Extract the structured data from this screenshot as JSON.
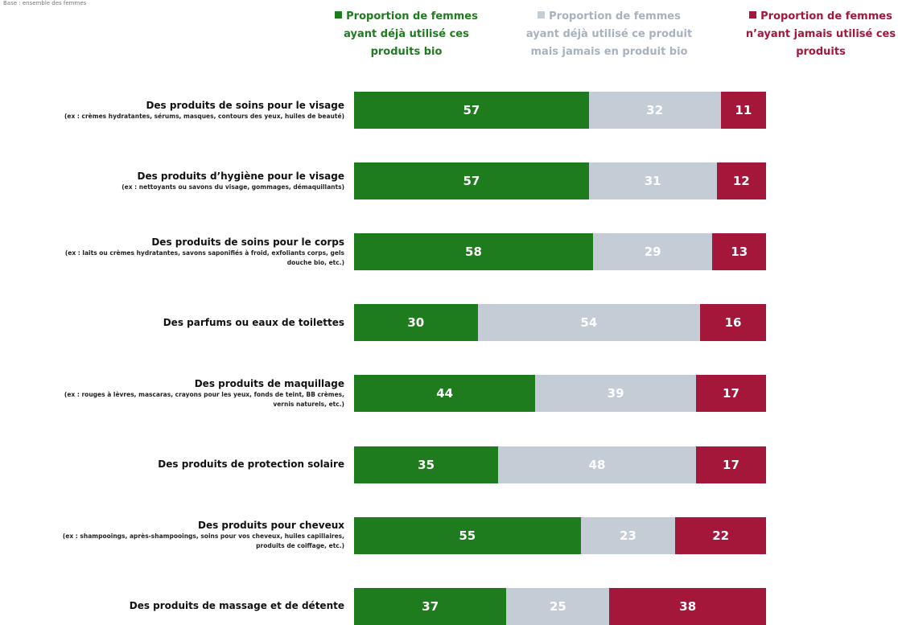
{
  "chart_data": {
    "type": "stacked-barh",
    "note": "Base : ensemble des femmes",
    "categories": [
      "Des produits de soins pour le visage",
      "Des produits d’hygiène pour le visage",
      "Des produits de soins pour le corps",
      "Des parfums ou eaux de toilettes",
      "Des produits de maquillage",
      "Des produits de protection solaire",
      "Des produits pour cheveux",
      "Des produits de massage et de détente"
    ],
    "category_notes": [
      "(ex : crèmes hydratantes, sérums, masques, contours des yeux, huiles de beauté)",
      "(ex : nettoyants ou savons du visage, gommages, démaquillants)",
      "(ex : laits ou crèmes hydratantes, savons saponifiés à froid, exfoliants corps, gels douche bio, etc.)",
      null,
      "(ex : rouges à lèvres, mascaras, crayons pour les yeux, fonds de teint, BB crèmes, vernis naturels, etc.)",
      null,
      "(ex : shampooings, après-shampooings, soins pour vos cheveux, huiles capillaires, produits de coiffage, etc.)",
      null
    ],
    "series": [
      {
        "name": "Proportion de femmes ayant déjà utilisé ces produits bio",
        "color": "#1e7b1e",
        "values": [
          57,
          57,
          58,
          30,
          44,
          35,
          55,
          37
        ]
      },
      {
        "name": "Proportion de femmes ayant déjà utilisé ce produit mais jamais en produit bio",
        "color": "#c4ccd6",
        "values": [
          32,
          31,
          29,
          54,
          39,
          48,
          23,
          25
        ]
      },
      {
        "name": "Proportion de femmes n’ayant jamais utilisé ces produits",
        "color": "#a5173a",
        "values": [
          11,
          12,
          13,
          16,
          17,
          17,
          22,
          38
        ]
      }
    ],
    "xlim": [
      0,
      100
    ]
  }
}
